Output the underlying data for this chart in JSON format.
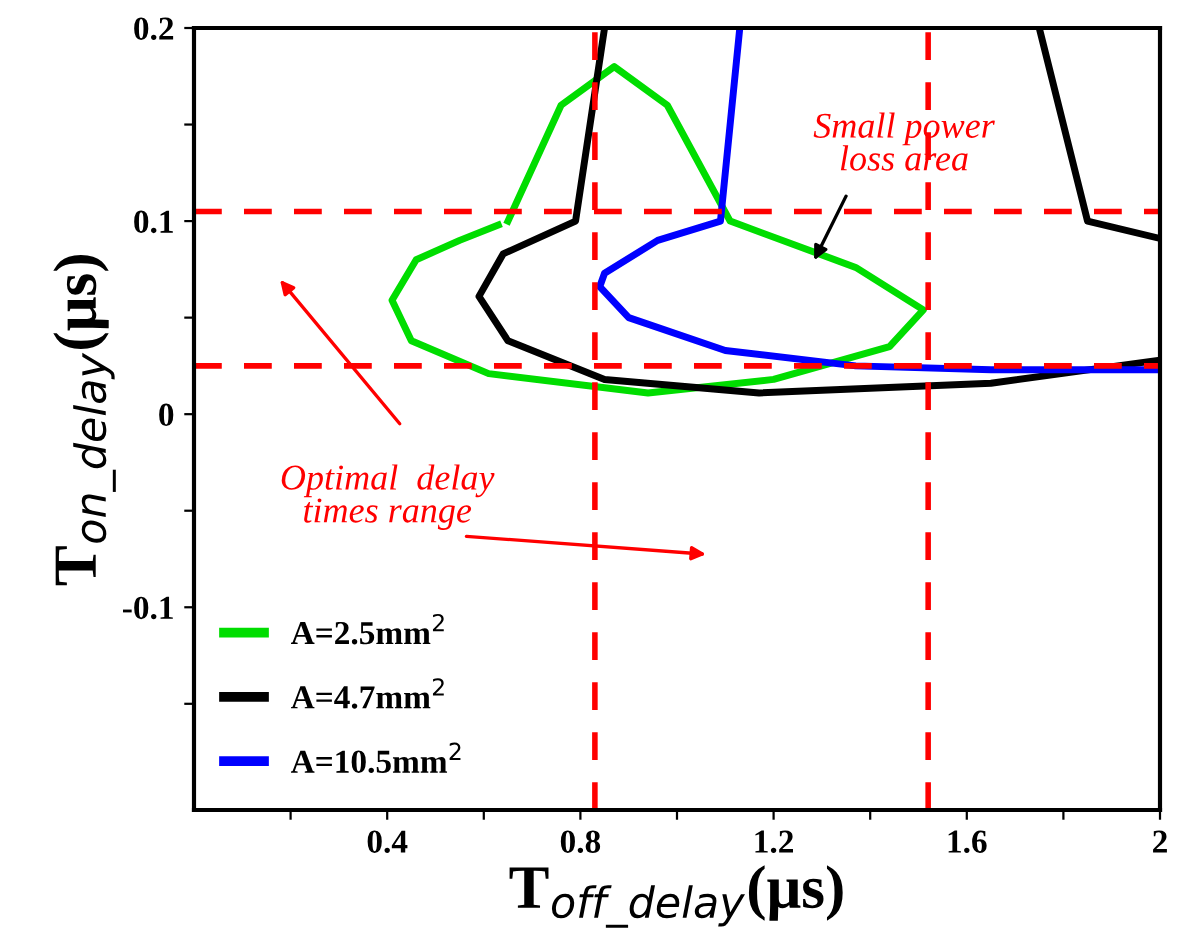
{
  "chart_data": {
    "type": "line",
    "xlabel": "T$_{off_delay}$(μs)",
    "ylabel": "T$_{on_delay}$(μs)",
    "xlim": [
      0,
      2
    ],
    "ylim": [
      -0.205,
      0.2
    ],
    "xticks": [
      {
        "value": 0.2,
        "label": null
      },
      0.4,
      {
        "value": 0.6,
        "label": null
      },
      0.8,
      {
        "value": 1.0,
        "label": null
      },
      1.2,
      {
        "value": 1.4,
        "label": null
      },
      1.6,
      {
        "value": 1.8,
        "label": null
      },
      2
    ],
    "yticks": [
      {
        "value": -0.15,
        "label": null
      },
      -0.1,
      {
        "value": -0.05,
        "label": null
      },
      0,
      {
        "value": 0.05,
        "label": null
      },
      0.1,
      {
        "value": 0.15,
        "label": null
      },
      0.2
    ],
    "grid": false,
    "legend": "bottom left",
    "line_style": "solid",
    "marker": "none",
    "series": [
      {
        "name": "A=2.5mm$^{2}$",
        "color": "#00dd00",
        "x": [
          0.65,
          0.76,
          0.87,
          0.98,
          1.11,
          1.37,
          1.51,
          1.44,
          1.2,
          0.94,
          0.61,
          0.45,
          0.41,
          0.46,
          0.55,
          0.63
        ],
        "values": [
          0.1,
          0.16,
          0.18,
          0.16,
          0.1,
          0.076,
          0.054,
          0.035,
          0.018,
          0.011,
          0.021,
          0.038,
          0.059,
          0.08,
          0.09,
          0.098
        ]
      },
      {
        "name": "A=4.7mm$^{2}$",
        "color": "#000000",
        "x": [
          0.85,
          0.79,
          0.64,
          0.59,
          0.65,
          0.85,
          1.17,
          1.65,
          2.0,
          null,
          2.0,
          1.85,
          1.75
        ],
        "values": [
          0.2,
          0.1,
          0.083,
          0.061,
          0.038,
          0.018,
          0.011,
          0.016,
          0.028,
          null,
          0.091,
          0.1,
          0.2
        ]
      },
      {
        "name": "A=10.5mm$^{2}$",
        "color": "#0000ff",
        "x": [
          1.13,
          1.09,
          0.96,
          0.85,
          0.84,
          0.9,
          1.1,
          1.37,
          1.65,
          2.0
        ],
        "values": [
          0.2,
          0.1,
          0.09,
          0.073,
          0.066,
          0.05,
          0.033,
          0.025,
          0.023,
          0.023
        ]
      }
    ],
    "ref_lines": [
      {
        "axis": "y",
        "value": 0.105,
        "color": "#ff0000",
        "line_style": "dashed"
      },
      {
        "axis": "y",
        "value": 0.025,
        "color": "#ff0000",
        "line_style": "dashed"
      },
      {
        "axis": "x",
        "value": 0.83,
        "color": "#ff0000",
        "line_style": "dashed"
      },
      {
        "axis": "x",
        "value": 1.52,
        "color": "#ff0000",
        "line_style": "dashed"
      }
    ],
    "annotations": [
      "Small power\nloss area",
      "Optimal  delay\ntimes range"
    ]
  }
}
